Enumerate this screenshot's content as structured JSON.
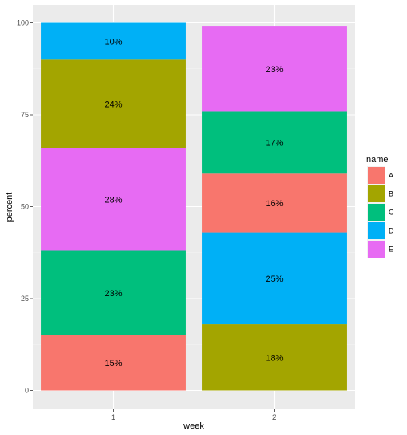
{
  "chart_data": {
    "type": "bar",
    "stacked": true,
    "xlabel": "week",
    "ylabel": "percent",
    "categories": [
      "1",
      "2"
    ],
    "ylim": [
      0,
      100
    ],
    "yticks": [
      0,
      25,
      50,
      75,
      100
    ],
    "grid": true,
    "legend": {
      "title": "name",
      "placement": "right",
      "entries": [
        "A",
        "B",
        "C",
        "D",
        "E"
      ]
    },
    "colors": {
      "A": "#F8766D",
      "B": "#A3A500",
      "C": "#00BF7D",
      "D": "#00B0F6",
      "E": "#E76BF3"
    },
    "panel_background": "#EBEBEB",
    "stacks": [
      {
        "category": "1",
        "segments": [
          {
            "name": "A",
            "value": 15,
            "label": "15%"
          },
          {
            "name": "C",
            "value": 23,
            "label": "23%"
          },
          {
            "name": "E",
            "value": 28,
            "label": "28%"
          },
          {
            "name": "B",
            "value": 24,
            "label": "24%"
          },
          {
            "name": "D",
            "value": 10,
            "label": "10%"
          }
        ]
      },
      {
        "category": "2",
        "segments": [
          {
            "name": "B",
            "value": 18,
            "label": "18%"
          },
          {
            "name": "D",
            "value": 25,
            "label": "25%"
          },
          {
            "name": "A",
            "value": 16,
            "label": "16%"
          },
          {
            "name": "C",
            "value": 17,
            "label": "17%"
          },
          {
            "name": "E",
            "value": 23,
            "label": "23%"
          }
        ]
      }
    ]
  }
}
